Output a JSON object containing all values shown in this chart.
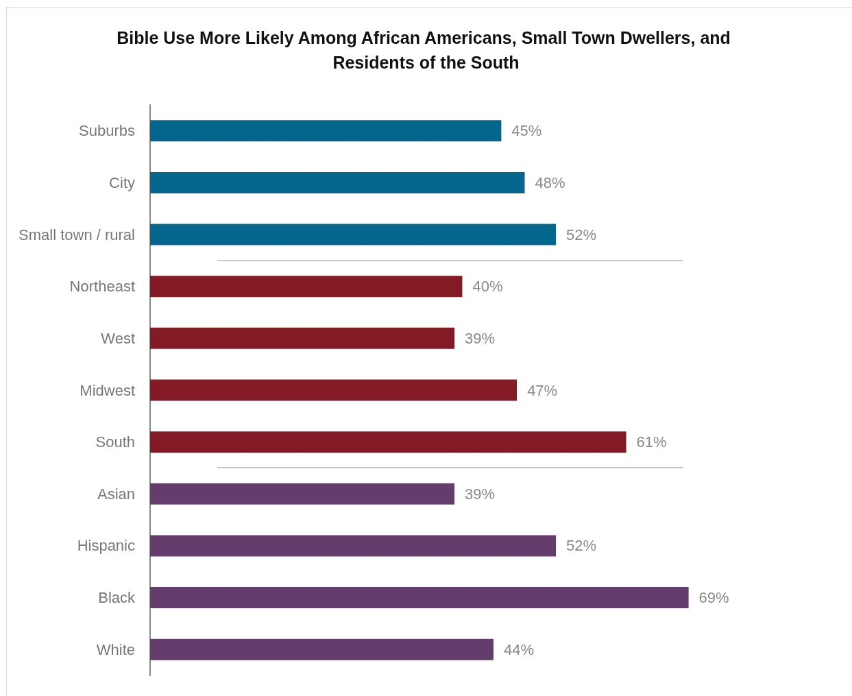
{
  "chart_data": {
    "type": "bar",
    "orientation": "horizontal",
    "title": "Bible Use More Likely Among African Americans, Small Town Dwellers, and Residents of the South",
    "categories": [
      "Suburbs",
      "City",
      "Small town / rural",
      "Northeast",
      "West",
      "Midwest",
      "South",
      "Asian",
      "Hispanic",
      "Black",
      "White"
    ],
    "values": [
      45,
      48,
      52,
      40,
      39,
      47,
      61,
      39,
      52,
      69,
      44
    ],
    "value_labels": [
      "45%",
      "48%",
      "52%",
      "40%",
      "39%",
      "47%",
      "61%",
      "39%",
      "52%",
      "69%",
      "44%"
    ],
    "colors": [
      "#05668d",
      "#05668d",
      "#05668d",
      "#841a23",
      "#841a23",
      "#841a23",
      "#841a23",
      "#653d6c",
      "#653d6c",
      "#653d6c",
      "#653d6c"
    ],
    "tick_labels": "y"
  }
}
